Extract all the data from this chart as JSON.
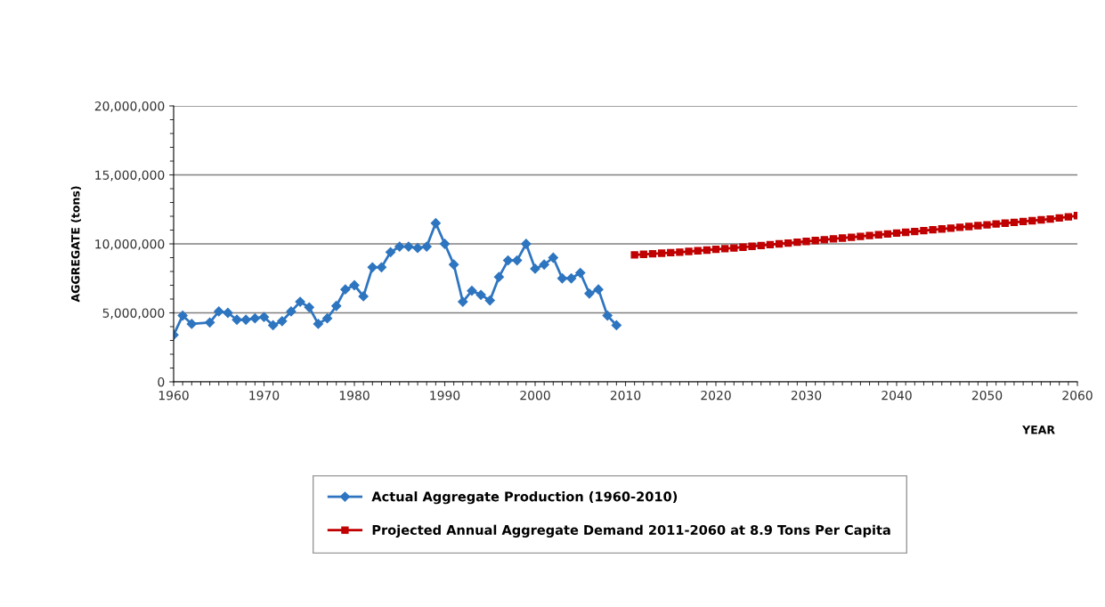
{
  "chart_data": {
    "type": "line",
    "xlabel": "YEAR",
    "ylabel": "AGGREGATE (tons)",
    "xlim": [
      1960,
      2060
    ],
    "xticks": [
      1960,
      1970,
      1980,
      1990,
      2000,
      2010,
      2020,
      2030,
      2040,
      2050,
      2060
    ],
    "ylim": [
      0,
      20000000
    ],
    "yticks": [
      {
        "value": 0,
        "label": "0"
      },
      {
        "value": 5000000,
        "label": "5,000,000"
      },
      {
        "value": 10000000,
        "label": "10,000,000"
      },
      {
        "value": 15000000,
        "label": "15,000,000"
      },
      {
        "value": 20000000,
        "label": "20,000,000"
      }
    ],
    "grid": "y",
    "legend": "bottom",
    "line_style": "solid",
    "series": [
      {
        "name": "Actual Aggregate Production (1960-2010)",
        "color": "#2e75c0",
        "marker": "diamond",
        "x": [
          1960,
          1961,
          1962,
          1964,
          1965,
          1966,
          1967,
          1968,
          1969,
          1970,
          1971,
          1972,
          1973,
          1974,
          1975,
          1976,
          1977,
          1978,
          1979,
          1980,
          1981,
          1982,
          1983,
          1984,
          1985,
          1986,
          1987,
          1988,
          1989,
          1990,
          1991,
          1992,
          1993,
          1994,
          1995,
          1996,
          1997,
          1998,
          1999,
          2000,
          2001,
          2002,
          2003,
          2004,
          2005,
          2006,
          2007,
          2008,
          2009
        ],
        "values": [
          3400000,
          4800000,
          4200000,
          4300000,
          5100000,
          5000000,
          4500000,
          4500000,
          4600000,
          4700000,
          4100000,
          4400000,
          5100000,
          5800000,
          5400000,
          4200000,
          4600000,
          5500000,
          6700000,
          7000000,
          6200000,
          8300000,
          8300000,
          9400000,
          9800000,
          9800000,
          9700000,
          9800000,
          11500000,
          10000000,
          8500000,
          5800000,
          6600000,
          6300000,
          5900000,
          7600000,
          8800000,
          8800000,
          10000000,
          8200000,
          8500000,
          9000000,
          7500000,
          7500000,
          7900000,
          6400000,
          6700000,
          4800000,
          4100000
        ]
      },
      {
        "name": "Projected Annual Aggregate Demand 2011-2060 at 8.9 Tons Per Capita",
        "color": "#c00000",
        "marker": "square",
        "x": [
          2011,
          2012,
          2013,
          2014,
          2015,
          2016,
          2017,
          2018,
          2019,
          2020,
          2021,
          2022,
          2023,
          2024,
          2025,
          2026,
          2027,
          2028,
          2029,
          2030,
          2031,
          2032,
          2033,
          2034,
          2035,
          2036,
          2037,
          2038,
          2039,
          2040,
          2041,
          2042,
          2043,
          2044,
          2045,
          2046,
          2047,
          2048,
          2049,
          2050,
          2051,
          2052,
          2053,
          2054,
          2055,
          2056,
          2057,
          2058,
          2059,
          2060
        ],
        "values": [
          9200000,
          9240000,
          9280000,
          9320000,
          9360000,
          9400000,
          9450000,
          9500000,
          9550000,
          9600000,
          9650000,
          9700000,
          9760000,
          9820000,
          9880000,
          9940000,
          10000000,
          10060000,
          10120000,
          10180000,
          10240000,
          10300000,
          10360000,
          10420000,
          10480000,
          10540000,
          10600000,
          10660000,
          10720000,
          10780000,
          10840000,
          10900000,
          10960000,
          11020000,
          11080000,
          11140000,
          11200000,
          11260000,
          11320000,
          11380000,
          11440000,
          11500000,
          11560000,
          11620000,
          11680000,
          11740000,
          11800000,
          11880000,
          11960000,
          12050000
        ]
      }
    ]
  }
}
